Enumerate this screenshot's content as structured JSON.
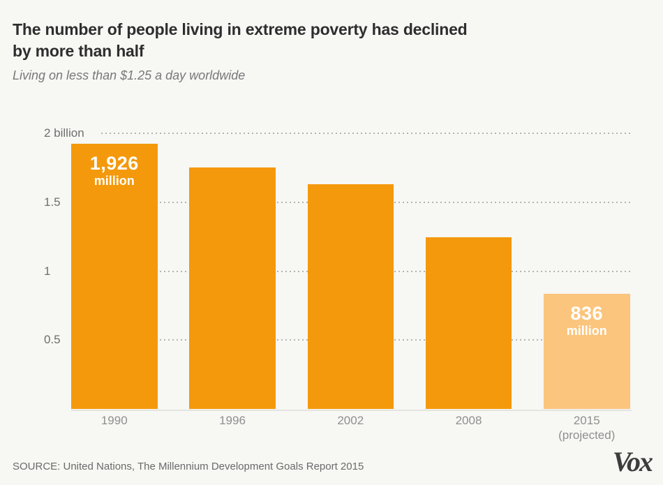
{
  "header": {
    "title_line1": "The number of people living in extreme poverty has declined",
    "title_line2": "by more than half",
    "subtitle": "Living on less than $1.25 a day worldwide"
  },
  "chart_data": {
    "type": "bar",
    "title": "The number of people living in extreme poverty has declined by more than half",
    "subtitle": "Living on less than $1.25 a day worldwide",
    "unit": "millions of people",
    "categories": [
      "1990",
      "1996",
      "2002",
      "2008",
      "2015 (projected)"
    ],
    "values": [
      1926,
      1750,
      1630,
      1245,
      836
    ],
    "bars": [
      {
        "year": "1990",
        "sublabel": "",
        "value_millions": 1926,
        "data_label": "1,926",
        "data_label_unit": "million",
        "projected": false
      },
      {
        "year": "1996",
        "sublabel": "",
        "value_millions": 1750,
        "data_label": "",
        "data_label_unit": "",
        "projected": false
      },
      {
        "year": "2002",
        "sublabel": "",
        "value_millions": 1630,
        "data_label": "",
        "data_label_unit": "",
        "projected": false
      },
      {
        "year": "2008",
        "sublabel": "",
        "value_millions": 1245,
        "data_label": "",
        "data_label_unit": "",
        "projected": false
      },
      {
        "year": "2015",
        "sublabel": "(projected)",
        "value_millions": 836,
        "data_label": "836",
        "data_label_unit": "million",
        "projected": true
      }
    ],
    "y_ticks": [
      {
        "label": "2 billion",
        "value": 2.0
      },
      {
        "label": "1.5",
        "value": 1.5
      },
      {
        "label": "1",
        "value": 1.0
      },
      {
        "label": "0.5",
        "value": 0.5
      }
    ],
    "ylim": [
      0,
      2.05
    ],
    "xlabel": "",
    "ylabel": "",
    "grid": "dotted horizontal",
    "legend": "none",
    "colors": {
      "bar": "#f4990b",
      "bar_projected": "#fbc57d",
      "gridline": "#b3b3b3",
      "background": "#f7f7f4"
    }
  },
  "footer": {
    "source": "SOURCE: United Nations, The Millennium Development Goals Report 2015",
    "logo_text": "Vox"
  }
}
